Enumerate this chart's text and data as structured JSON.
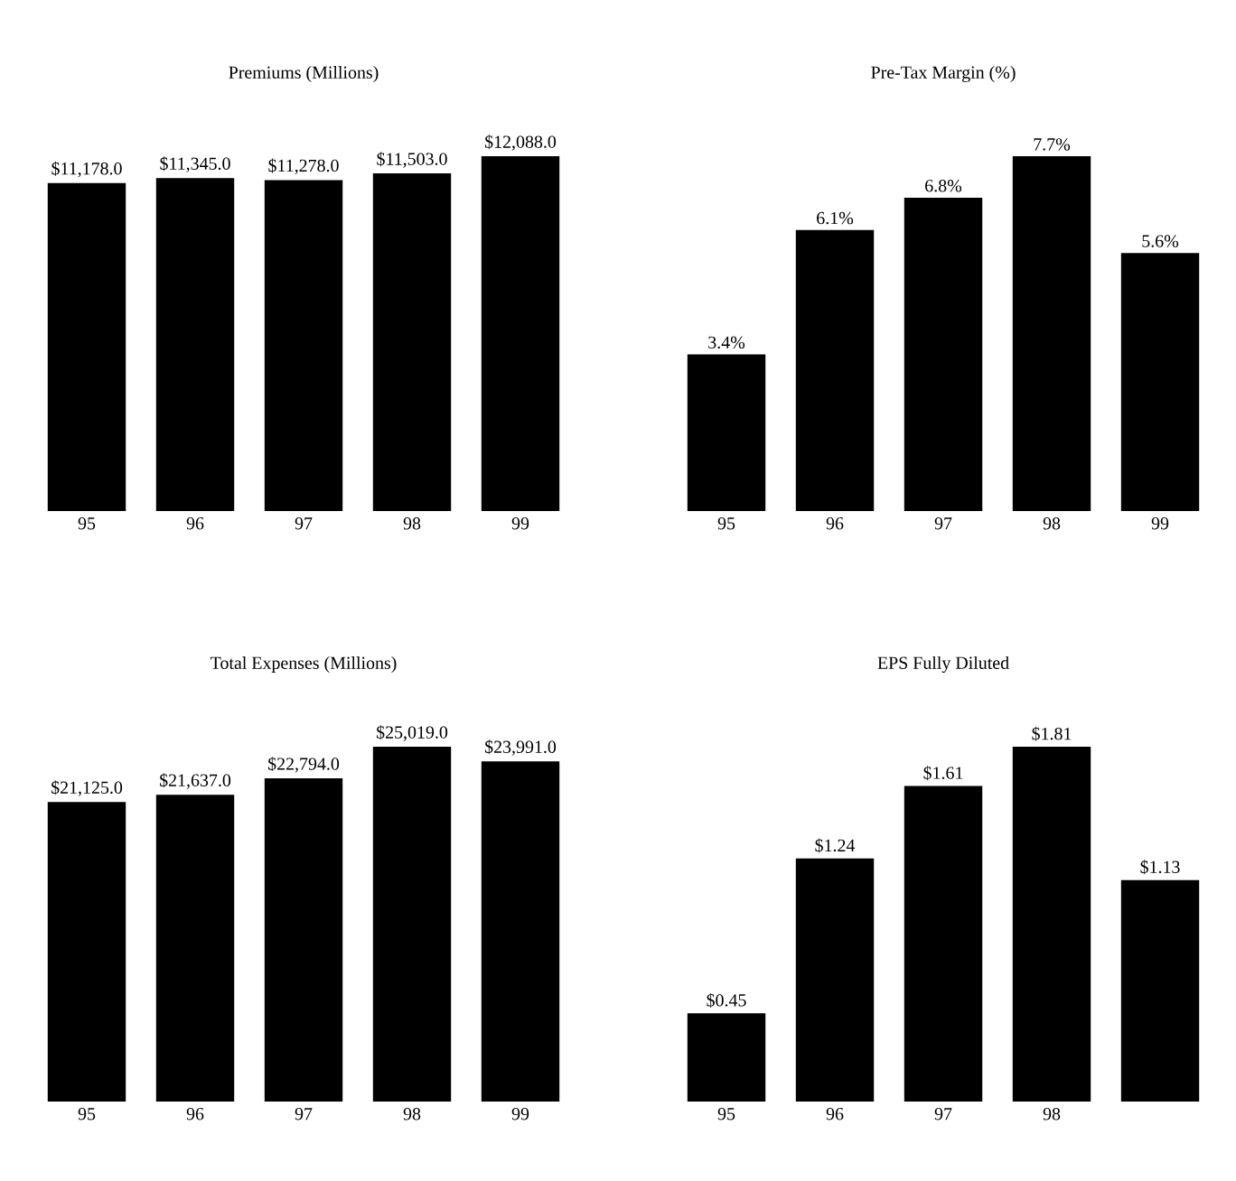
{
  "chart_data": [
    {
      "type": "bar",
      "title": "Premiums (Millions)",
      "categories": [
        "95",
        "96",
        "97",
        "98",
        "99"
      ],
      "values": [
        11178.0,
        11345.0,
        11278.0,
        11503.0,
        12088.0
      ],
      "value_labels": [
        "$11,178.0",
        "$11,345.0",
        "$11,278.0",
        "$11,503.0",
        "$12,088.0"
      ],
      "color": "#000000"
    },
    {
      "type": "bar",
      "title": "Pre-Tax Margin (%)",
      "categories": [
        "95",
        "96",
        "97",
        "98",
        "99"
      ],
      "values": [
        3.4,
        6.1,
        6.8,
        7.7,
        5.6
      ],
      "value_labels": [
        "3.4%",
        "6.1%",
        "6.8%",
        "7.7%",
        "5.6%"
      ],
      "color": "#000000"
    },
    {
      "type": "bar",
      "title": "Total Expenses (Millions)",
      "categories": [
        "95",
        "96",
        "97",
        "98",
        "99"
      ],
      "values": [
        21125.0,
        21637.0,
        22794.0,
        25019.0,
        23991.0
      ],
      "value_labels": [
        "$21,125.0",
        "$21,637.0",
        "$22,794.0",
        "$25,019.0",
        "$23,991.0"
      ],
      "color": "#000000"
    },
    {
      "type": "bar",
      "title": "EPS Fully Diluted",
      "categories": [
        "95",
        "96",
        "97",
        "98",
        null
      ],
      "values": [
        0.45,
        1.24,
        1.61,
        1.81,
        1.13
      ],
      "value_labels": [
        "$0.45",
        "$1.24",
        "$1.61",
        "$1.81",
        "$1.13"
      ],
      "color": "#000000"
    }
  ]
}
